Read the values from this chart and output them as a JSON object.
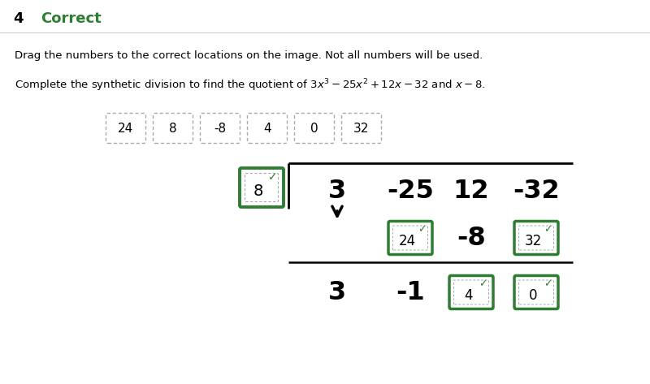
{
  "title_number": "4",
  "title_text": "Correct",
  "title_color": "#2e7d32",
  "instruction": "Drag the numbers to the correct locations on the image. Not all numbers will be used.",
  "math_text": "Complete the synthetic division to find the quotient of $3x^3 - 25x^2 + 12x - 32$ and $x - 8$.",
  "drag_numbers": [
    "24",
    "8",
    "-8",
    "4",
    "0",
    "32"
  ],
  "divisor": "8",
  "coefficients": [
    "3",
    "-25",
    "12",
    "-32"
  ],
  "middle_row": [
    "",
    "24",
    "-8",
    "32"
  ],
  "middle_row_checked": [
    false,
    true,
    false,
    true
  ],
  "bottom_row": [
    "3",
    "-1",
    "4",
    "0"
  ],
  "bottom_row_checked": [
    false,
    false,
    true,
    true
  ],
  "bg_color": "#ffffff",
  "box_dashed_color": "#aaaaaa",
  "box_solid_color": "#2e7d32",
  "text_color": "#000000",
  "separator_color": "#cccccc"
}
